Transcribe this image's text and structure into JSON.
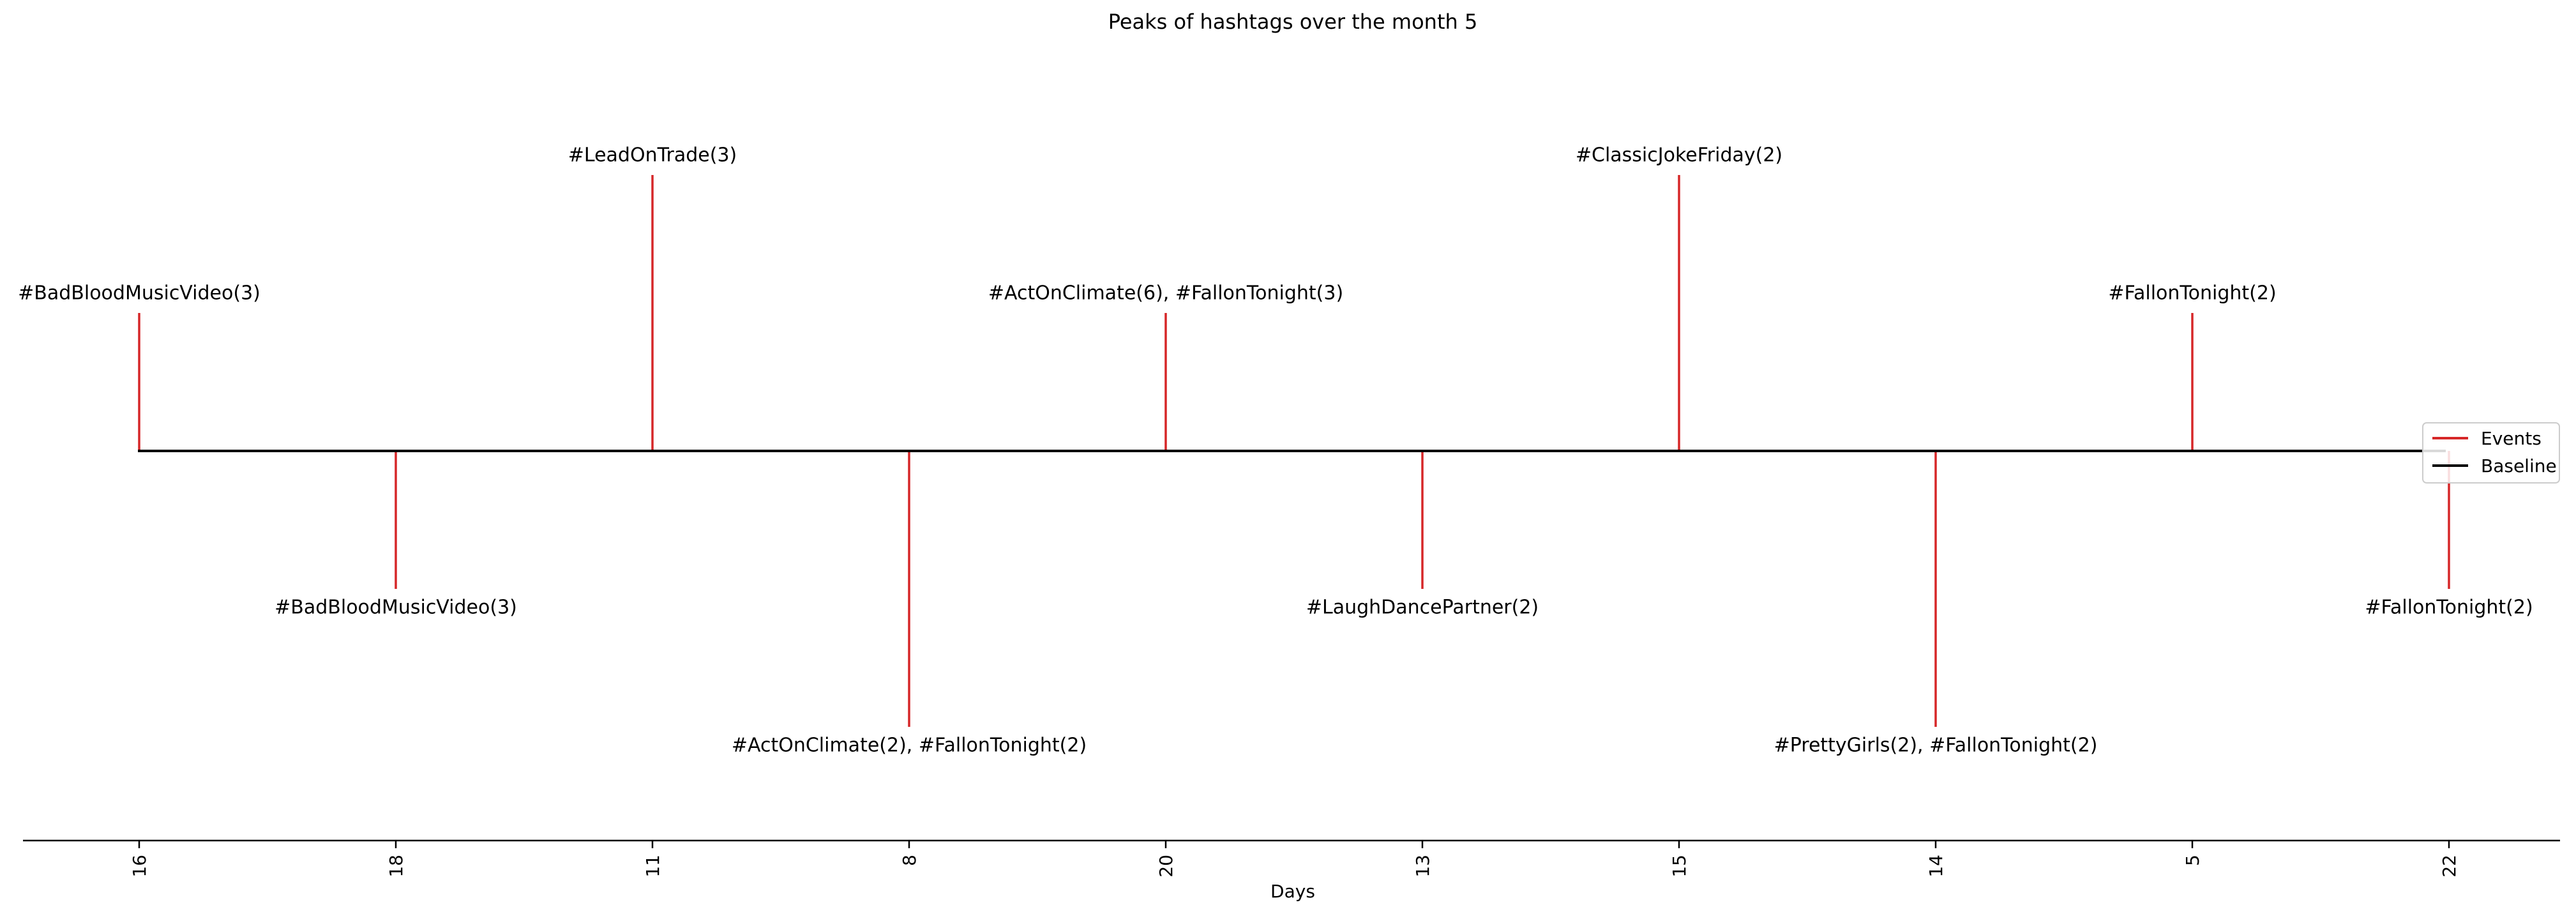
{
  "chart_data": {
    "type": "timeline",
    "title": "Peaks of hashtags over the month 5",
    "xlabel": "Days",
    "categories": [
      "16",
      "18",
      "11",
      "8",
      "20",
      "13",
      "15",
      "14",
      "5",
      "22"
    ],
    "events": [
      {
        "day": "16",
        "level": 1,
        "label": "#BadBloodMusicVideo(3)"
      },
      {
        "day": "18",
        "level": -1,
        "label": "#BadBloodMusicVideo(3)"
      },
      {
        "day": "11",
        "level": 2,
        "label": "#LeadOnTrade(3)"
      },
      {
        "day": "8",
        "level": -2,
        "label": "#ActOnClimate(2), #FallonTonight(2)"
      },
      {
        "day": "20",
        "level": 1,
        "label": "#ActOnClimate(6), #FallonTonight(3)"
      },
      {
        "day": "13",
        "level": -1,
        "label": "#LaughDancePartner(2)"
      },
      {
        "day": "15",
        "level": 2,
        "label": "#ClassicJokeFriday(2)"
      },
      {
        "day": "14",
        "level": -2,
        "label": "#PrettyGirls(2), #FallonTonight(2)"
      },
      {
        "day": "5",
        "level": 1,
        "label": "#FallonTonight(2)"
      },
      {
        "day": "22",
        "level": -1,
        "label": "#FallonTonight(2)"
      }
    ],
    "legend": {
      "placement": "right",
      "entries": [
        {
          "name": "Events",
          "color": "#d62728"
        },
        {
          "name": "Baseline",
          "color": "#000000"
        }
      ]
    },
    "grid": false,
    "colors": {
      "event": "#d62728",
      "baseline": "#000000",
      "axis": "#000000"
    }
  }
}
